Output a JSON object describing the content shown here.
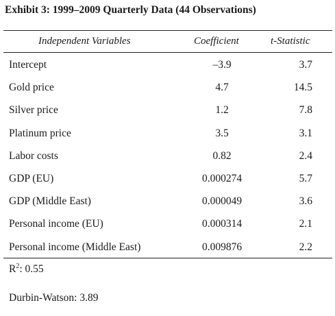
{
  "title": "Exhibit 3: 1999–2009 Quarterly Data (44 Observations)",
  "columns": {
    "variable": "Independent Variables",
    "coefficient": "Coefficient",
    "tstat": "t-Statistic"
  },
  "rows": [
    {
      "variable": "Intercept",
      "coefficient": "–3.9",
      "tstat": "3.7"
    },
    {
      "variable": "Gold price",
      "coefficient": "4.7",
      "tstat": "14.5"
    },
    {
      "variable": "Silver price",
      "coefficient": "1.2",
      "tstat": "7.8"
    },
    {
      "variable": "Platinum price",
      "coefficient": "3.5",
      "tstat": "3.1"
    },
    {
      "variable": "Labor costs",
      "coefficient": "0.82",
      "tstat": "2.4"
    },
    {
      "variable": "GDP (EU)",
      "coefficient": "0.000274",
      "tstat": "5.7"
    },
    {
      "variable": "GDP (Middle East)",
      "coefficient": "0.000049",
      "tstat": "3.6"
    },
    {
      "variable": "Personal income (EU)",
      "coefficient": "0.000314",
      "tstat": "2.1"
    },
    {
      "variable": "Personal income (Middle East)",
      "coefficient": "0.009876",
      "tstat": "2.2"
    }
  ],
  "footer": {
    "r2_label": "R",
    "r2_sup": "2",
    "r2_value": ": 0.55",
    "dw": "Durbin-Watson: 3.89"
  }
}
